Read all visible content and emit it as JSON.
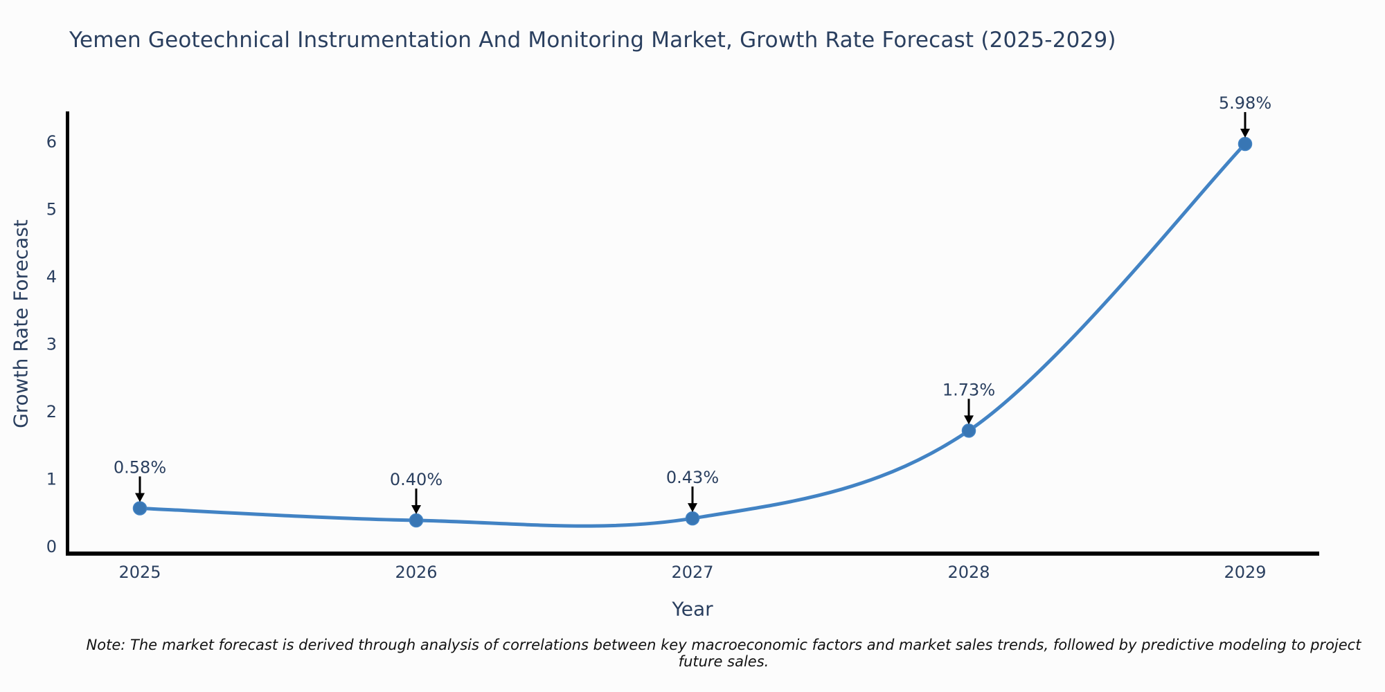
{
  "chart_data": {
    "type": "line",
    "title": "Yemen Geotechnical Instrumentation And Monitoring Market, Growth Rate Forecast (2025-2029)",
    "xlabel": "Year",
    "ylabel": "Growth Rate Forecast",
    "x": [
      2025,
      2026,
      2027,
      2028,
      2029
    ],
    "categories": [
      "2025",
      "2026",
      "2027",
      "2028",
      "2029"
    ],
    "values": [
      0.58,
      0.4,
      0.43,
      1.73,
      5.98
    ],
    "point_labels": [
      "0.58%",
      "0.40%",
      "0.43%",
      "1.73%",
      "5.98%"
    ],
    "yticks": [
      0,
      1,
      2,
      3,
      4,
      5,
      6
    ],
    "ylim": [
      0,
      6.46
    ],
    "line_shape": "spline",
    "grid": false,
    "legend": "none",
    "colors": {
      "line": "#4283c4",
      "marker": "#3876b4",
      "annotation_arrow": "#000000",
      "text": "#2a3f5f",
      "spine": "#000000",
      "background": "#fcfcfc"
    }
  },
  "footnote": "Note: The market forecast is derived through analysis of correlations between key macroeconomic factors and market sales trends, followed by predictive modeling to project future sales."
}
